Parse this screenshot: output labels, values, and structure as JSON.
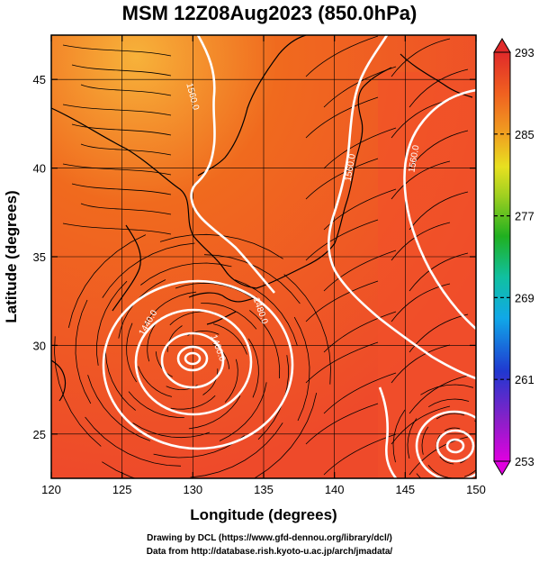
{
  "title": "MSM 12Z08Aug2023 (850.0hPa)",
  "credits": {
    "line1": "Drawing by DCL (https://www.gfd-dennou.org/library/dcl/)",
    "line2": "Data from http://database.rish.kyoto-u.ac.jp/arch/jmadata/"
  },
  "map": {
    "xlabel": "Longitude (degrees)",
    "ylabel": "Latitude  (degrees)",
    "lon_range": [
      120,
      150
    ],
    "lat_range": [
      22.5,
      47.5
    ],
    "lon_ticks": [
      120,
      125,
      130,
      135,
      140,
      145,
      150
    ],
    "lat_ticks": [
      25,
      30,
      35,
      40,
      45
    ],
    "lon_tick_labels": [
      "120",
      "125",
      "130",
      "135",
      "140",
      "145",
      "150"
    ],
    "lat_tick_labels": [
      "25",
      "30",
      "35",
      "40",
      "45"
    ],
    "colors": {
      "field_hot": "#f0452a",
      "field_warm": "#f06a1e",
      "field_pale": "#f7b23a",
      "contour": "#ffffff",
      "streamline": "#000000"
    },
    "contour_labels": [
      {
        "text": "1560.0",
        "lon": 129.8,
        "lat": 44.0,
        "rotate": 75
      },
      {
        "text": "1560.0",
        "lon": 141.3,
        "lat": 40.0,
        "rotate": -80
      },
      {
        "text": "1560.0",
        "lon": 145.8,
        "lat": 40.5,
        "rotate": -80
      },
      {
        "text": "1480.0",
        "lon": 134.6,
        "lat": 31.9,
        "rotate": 70
      },
      {
        "text": "1440.0",
        "lon": 127.0,
        "lat": 31.2,
        "rotate": -60
      },
      {
        "text": "1400.0",
        "lon": 131.6,
        "lat": 29.8,
        "rotate": 70
      }
    ]
  },
  "colorbar": {
    "min": 253,
    "max": 293,
    "ticks": [
      253,
      261,
      269,
      277,
      285,
      293
    ],
    "tick_labels": [
      "253",
      "261",
      "269",
      "277",
      "285",
      "293"
    ],
    "colors": [
      "#e000e0",
      "#7020c0",
      "#2040d0",
      "#10a0e0",
      "#10c0a0",
      "#20b020",
      "#80d020",
      "#e0e020",
      "#f0a020",
      "#f07020",
      "#f04020",
      "#e02020"
    ]
  }
}
